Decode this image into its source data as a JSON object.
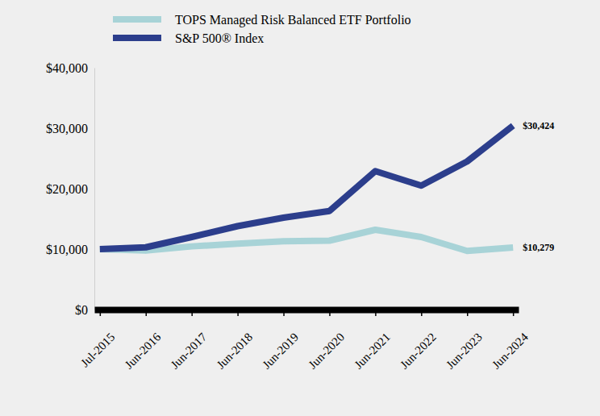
{
  "chart_data": {
    "type": "line",
    "categories": [
      "Jul-2015",
      "Jun-2016",
      "Jun-2017",
      "Jun-2018",
      "Jun-2019",
      "Jun-2020",
      "Jun-2021",
      "Jun-2022",
      "Jun-2023",
      "Jun-2024"
    ],
    "series": [
      {
        "name": "TOPS Managed Risk Balanced ETF Portfolio",
        "color": "#a8d3d7",
        "values": [
          10000,
          9750,
          10450,
          10900,
          11300,
          11400,
          13200,
          12000,
          9700,
          10279
        ],
        "value_labels": [
          null,
          null,
          null,
          null,
          null,
          null,
          null,
          null,
          null,
          "$10,279"
        ]
      },
      {
        "name": "S&P 500® Index",
        "color": "#2c3e8c",
        "values": [
          10000,
          10300,
          12000,
          13800,
          15200,
          16300,
          22900,
          20500,
          24500,
          30424
        ],
        "value_labels": [
          null,
          null,
          null,
          null,
          null,
          null,
          null,
          null,
          null,
          "$30,424"
        ]
      }
    ],
    "ylim": [
      0,
      40000
    ],
    "yticks": [
      {
        "value": 0,
        "label": "$0"
      },
      {
        "value": 10000,
        "label": "$10,000"
      },
      {
        "value": 20000,
        "label": "$20,000"
      },
      {
        "value": 30000,
        "label": "$30,000"
      },
      {
        "value": 40000,
        "label": "$40,000"
      }
    ],
    "grid": false,
    "legend": "top",
    "data_labels": true
  }
}
